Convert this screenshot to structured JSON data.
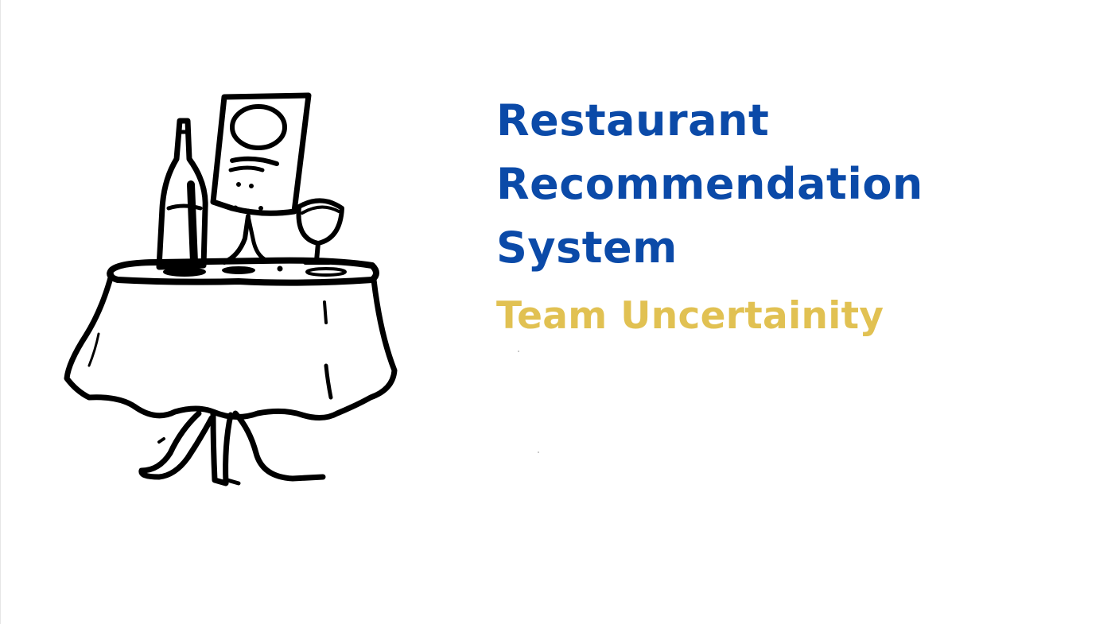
{
  "slide": {
    "title_lines": [
      "Restaurant",
      "Recommendation",
      "System"
    ],
    "subtitle": "Team Uncertainity"
  },
  "illustration": {
    "icon": "restaurant-table-icon",
    "depicts": [
      "wine-bottle",
      "menu-card",
      "wine-glass",
      "round-table-with-tablecloth"
    ]
  },
  "colors": {
    "title": "#0b4aa8",
    "subtitle": "#e1c152",
    "ink": "#000000",
    "background": "#ffffff"
  }
}
